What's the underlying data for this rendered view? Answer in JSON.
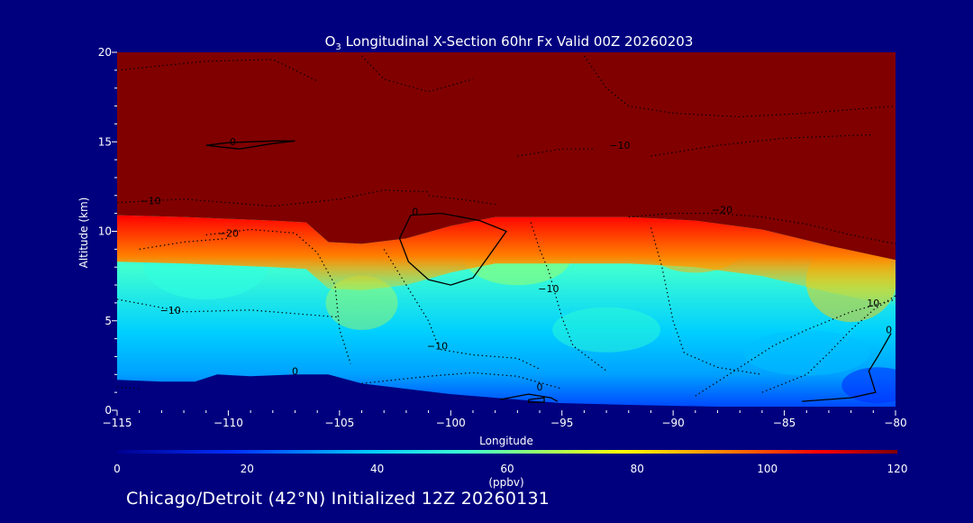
{
  "chart_data": {
    "type": "heatmap",
    "title": "O3 Longitudinal X-Section 60hr  Fx Valid 00Z 20260203",
    "title_prefix": "O",
    "title_subscript": "3",
    "title_rest": " Longitudinal X-Section 60hr  Fx Valid 00Z 20260203",
    "xlabel": "Longitude",
    "ylabel": "Altitude (km)",
    "xlim": [
      -115,
      -80
    ],
    "ylim": [
      0,
      20
    ],
    "x_ticks": [
      -115,
      -110,
      -105,
      -100,
      -95,
      -90,
      -85,
      -80
    ],
    "x_tick_labels": [
      "−115",
      "−110",
      "−105",
      "−100",
      "−95",
      "−90",
      "−85",
      "−80"
    ],
    "y_ticks": [
      0,
      5,
      10,
      15,
      20
    ],
    "y_tick_labels": [
      "0",
      "5",
      "10",
      "15",
      "20"
    ],
    "colorbar": {
      "label": "(ppbv)",
      "ticks": [
        0,
        20,
        40,
        60,
        80,
        100,
        120
      ],
      "tick_labels": [
        "0",
        "20",
        "40",
        "60",
        "80",
        "100",
        "120"
      ],
      "range": [
        0,
        120
      ]
    },
    "tropopause_altitude_km": [
      [
        -115,
        10.9
      ],
      [
        -112,
        10.8
      ],
      [
        -110,
        10.7
      ],
      [
        -108,
        10.6
      ],
      [
        -106.5,
        10.5
      ],
      [
        -105.5,
        9.4
      ],
      [
        -104,
        9.3
      ],
      [
        -102,
        9.6
      ],
      [
        -100,
        10.3
      ],
      [
        -98,
        10.8
      ],
      [
        -95,
        10.8
      ],
      [
        -92,
        10.8
      ],
      [
        -89,
        10.6
      ],
      [
        -86,
        10.1
      ],
      [
        -83,
        9.2
      ],
      [
        -80,
        8.4
      ]
    ],
    "terrain_altitude_km": [
      [
        -115,
        1.7
      ],
      [
        -113,
        1.6
      ],
      [
        -111.5,
        1.6
      ],
      [
        -110.5,
        2.0
      ],
      [
        -109,
        1.9
      ],
      [
        -107,
        2.0
      ],
      [
        -105.5,
        2.0
      ],
      [
        -104,
        1.5
      ],
      [
        -102,
        1.2
      ],
      [
        -100,
        0.9
      ],
      [
        -97,
        0.6
      ],
      [
        -95,
        0.4
      ],
      [
        -92,
        0.3
      ],
      [
        -88,
        0.2
      ],
      [
        -85,
        0.2
      ],
      [
        -80,
        0.2
      ]
    ],
    "contour_labels": [
      {
        "text": "0",
        "lon": -109.8,
        "alt": 14.8
      },
      {
        "text": "−10",
        "lon": -92.4,
        "alt": 14.6
      },
      {
        "text": "−10",
        "lon": -113.5,
        "alt": 11.5
      },
      {
        "text": "−20",
        "lon": -110.0,
        "alt": 9.7
      },
      {
        "text": "0",
        "lon": -101.6,
        "alt": 10.9
      },
      {
        "text": "−20",
        "lon": -87.8,
        "alt": 11.0
      },
      {
        "text": "−10",
        "lon": -95.6,
        "alt": 6.6
      },
      {
        "text": "−10",
        "lon": -112.6,
        "alt": 5.4
      },
      {
        "text": "−10",
        "lon": -100.6,
        "alt": 3.4
      },
      {
        "text": "10",
        "lon": -81.0,
        "alt": 5.8
      },
      {
        "text": "0",
        "lon": -80.3,
        "alt": 4.3
      },
      {
        "text": "0",
        "lon": -107.0,
        "alt": 2.0
      },
      {
        "text": "0",
        "lon": -96.0,
        "alt": 1.1
      }
    ]
  },
  "footer": {
    "init_label": "Chicago/Detroit (42°N) Initialized 12Z 20260131"
  },
  "colors": {
    "background": "#00007f",
    "stratosphere": "#800000",
    "terrain": "#000080",
    "axes": "#ffffff"
  }
}
